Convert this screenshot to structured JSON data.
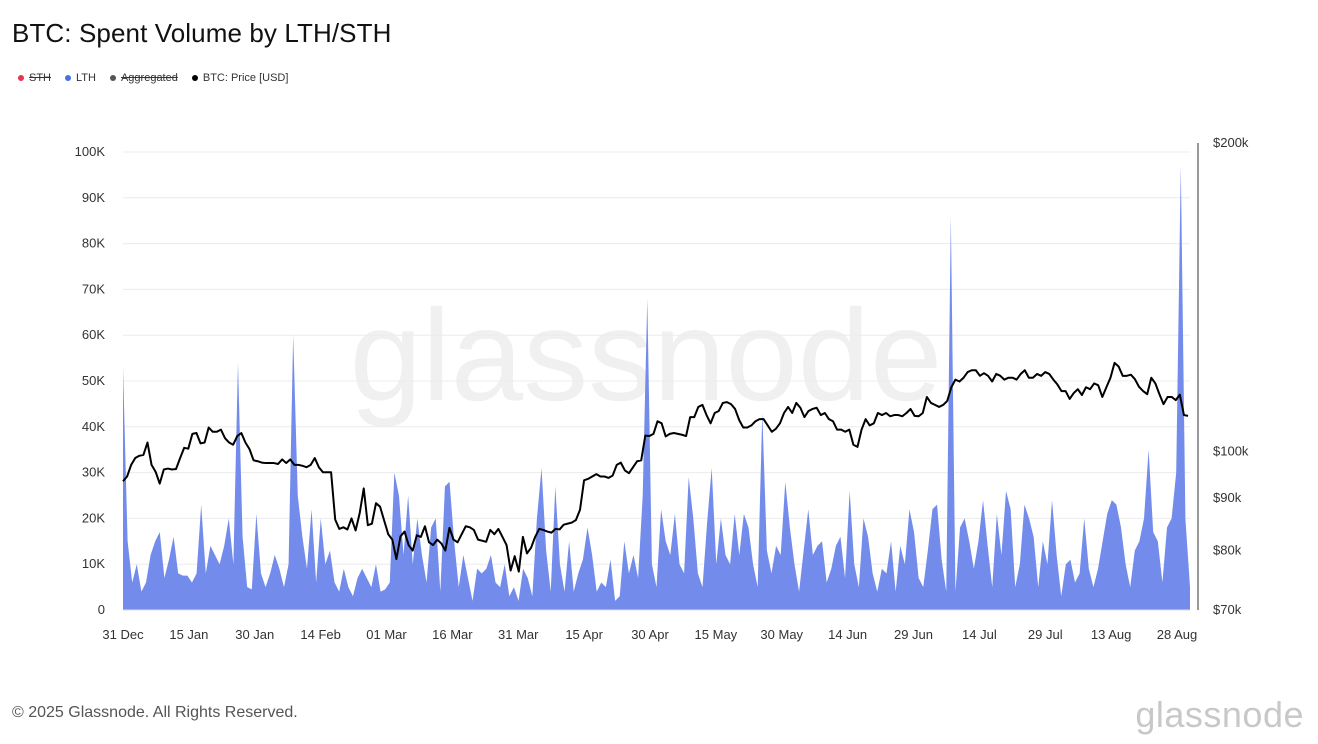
{
  "header": {
    "title": "BTC: Spent Volume by LTH/STH"
  },
  "legend": [
    {
      "label": "STH",
      "color": "#e8344e",
      "enabled": false
    },
    {
      "label": "LTH",
      "color": "#4a6fe3",
      "enabled": true
    },
    {
      "label": "Aggregated",
      "color": "#555555",
      "enabled": false
    },
    {
      "label": "BTC: Price [USD]",
      "color": "#000000",
      "enabled": true
    }
  ],
  "footer": {
    "copyright": "© 2025 Glassnode. All Rights Reserved.",
    "brand": "glassnode"
  },
  "watermark": "glassnode",
  "chart_data": {
    "type": "area",
    "title": "BTC: Spent Volume by LTH/STH",
    "x_tick_labels": [
      "31 Dec",
      "15 Jan",
      "30 Jan",
      "14 Feb",
      "01 Mar",
      "16 Mar",
      "31 Mar",
      "15 Apr",
      "30 Apr",
      "15 May",
      "30 May",
      "14 Jun",
      "29 Jun",
      "14 Jul",
      "29 Jul",
      "13 Aug",
      "28 Aug"
    ],
    "y_left": {
      "ticks": [
        "0",
        "10K",
        "20K",
        "30K",
        "40K",
        "50K",
        "60K",
        "70K",
        "80K",
        "90K",
        "100K"
      ],
      "min": 0,
      "max": 100000
    },
    "y_right": {
      "ticks": [
        "$70k",
        "$80k",
        "$90k",
        "$100k",
        "$200k"
      ],
      "values": [
        70000,
        80000,
        90000,
        100000,
        200000
      ],
      "scale": "log"
    },
    "grid": true,
    "legend_position": "top-left",
    "series": [
      {
        "name": "LTH",
        "axis": "left",
        "color": "#6b86ea",
        "values": [
          53000,
          15000,
          6000,
          10000,
          4000,
          6000,
          12000,
          15000,
          17000,
          7000,
          11000,
          16000,
          8000,
          7500,
          7500,
          6000,
          8000,
          23000,
          8000,
          14000,
          12000,
          10000,
          14000,
          20000,
          10000,
          54000,
          16000,
          5000,
          4500,
          21000,
          8000,
          5000,
          8000,
          12000,
          9000,
          5000,
          10000,
          60000,
          25000,
          16000,
          9000,
          22000,
          6000,
          20000,
          10000,
          13000,
          6000,
          4000,
          9000,
          5000,
          3000,
          7000,
          9000,
          7000,
          5000,
          10000,
          4000,
          4500,
          6000,
          30000,
          25000,
          12000,
          25000,
          10000,
          20000,
          12000,
          6000,
          18000,
          20000,
          4000,
          27000,
          28000,
          15000,
          5000,
          12000,
          7000,
          2000,
          9000,
          8000,
          9000,
          12000,
          6000,
          5000,
          10000,
          3000,
          5000,
          2000,
          9000,
          7000,
          3000,
          20000,
          31000,
          13000,
          4000,
          27000,
          10000,
          4000,
          15000,
          4000,
          8000,
          11000,
          18000,
          12000,
          4000,
          6000,
          5000,
          11000,
          2000,
          3000,
          15000,
          8000,
          12000,
          7000,
          25000,
          68000,
          10000,
          5000,
          22000,
          15000,
          12000,
          21000,
          10000,
          8000,
          29000,
          20000,
          8000,
          5000,
          19000,
          31000,
          10000,
          20000,
          12000,
          10000,
          21000,
          12000,
          21000,
          18000,
          10000,
          5000,
          43000,
          13000,
          8000,
          14000,
          12000,
          28000,
          18000,
          10000,
          4000,
          13000,
          22000,
          12000,
          14000,
          15000,
          6000,
          9000,
          14000,
          16000,
          7000,
          26000,
          10000,
          5000,
          20000,
          16000,
          8000,
          4000,
          9000,
          8000,
          15000,
          4000,
          14000,
          10000,
          22000,
          17000,
          7000,
          5000,
          13000,
          22000,
          23000,
          11000,
          4000,
          86000,
          4000,
          18000,
          20000,
          15000,
          9000,
          15000,
          24000,
          14000,
          5000,
          21000,
          12000,
          26000,
          22000,
          5000,
          10000,
          23000,
          20000,
          16000,
          5000,
          15000,
          10000,
          24000,
          12000,
          3000,
          10000,
          11000,
          6000,
          8000,
          20000,
          9000,
          5000,
          9000,
          15000,
          21000,
          24000,
          23000,
          18000,
          10000,
          5000,
          13000,
          15000,
          20000,
          35000,
          17000,
          15000,
          6000,
          18000,
          20000,
          30000,
          97000,
          20000,
          5000
        ]
      },
      {
        "name": "BTC: Price [USD]",
        "axis": "right",
        "color": "#000000",
        "values": [
          93500,
          94500,
          97000,
          98500,
          99000,
          99200,
          102000,
          97000,
          95500,
          93000,
          96000,
          96200,
          96000,
          96100,
          98500,
          100800,
          100600,
          104000,
          104200,
          101800,
          102000,
          105500,
          104500,
          104500,
          105000,
          103000,
          102000,
          101500,
          103500,
          104200,
          102000,
          100500,
          98000,
          97800,
          97500,
          97400,
          97400,
          97400,
          97200,
          98200,
          97400,
          98200,
          97000,
          97000,
          96800,
          96500,
          97000,
          98500,
          96500,
          95400,
          95400,
          95400,
          85800,
          84000,
          84300,
          83900,
          86000,
          83700,
          87000,
          92000,
          84700,
          85000,
          89000,
          88300,
          85600,
          83000,
          82000,
          78500,
          82600,
          83500,
          81000,
          80000,
          82800,
          82500,
          84500,
          81500,
          81000,
          82000,
          81300,
          80000,
          84200,
          82000,
          81500,
          83000,
          84500,
          84300,
          83800,
          82000,
          81800,
          81600,
          83800,
          83000,
          84000,
          82500,
          81000,
          76500,
          79000,
          76300,
          82500,
          79500,
          80500,
          82500,
          84000,
          83800,
          83500,
          83300,
          84000,
          83900,
          84800,
          85000,
          85200,
          85700,
          87700,
          93700,
          94000,
          94500,
          95000,
          94500,
          94500,
          94200,
          94700,
          97000,
          97500,
          95800,
          95200,
          96500,
          97800,
          98000,
          103600,
          103500,
          104000,
          107000,
          106500,
          103400,
          104000,
          104200,
          104000,
          103800,
          103500,
          108000,
          108000,
          110500,
          111000,
          108500,
          106500,
          109000,
          109500,
          111500,
          111700,
          111200,
          110000,
          107300,
          105500,
          105500,
          106000,
          107000,
          107500,
          107500,
          106000,
          104500,
          105200,
          106500,
          109000,
          110500,
          109000,
          111500,
          110300,
          108000,
          109500,
          110000,
          110300,
          108500,
          109000,
          107500,
          107000,
          105000,
          105000,
          104500,
          105000,
          101500,
          101000,
          105000,
          107500,
          106000,
          106500,
          109000,
          108500,
          109000,
          108200,
          108500,
          108500,
          108200,
          109000,
          110000,
          108300,
          108200,
          109000,
          113000,
          111500,
          111000,
          110500,
          111000,
          112000,
          115500,
          117500,
          117000,
          118000,
          119500,
          120000,
          120000,
          118500,
          119200,
          118500,
          117000,
          119000,
          118500,
          117500,
          118000,
          118000,
          117500,
          119000,
          120000,
          118000,
          118000,
          119000,
          118500,
          119500,
          119000,
          117500,
          116200,
          114500,
          114500,
          112500,
          114000,
          115000,
          113500,
          115500,
          115000,
          116500,
          116000,
          113000,
          115500,
          118000,
          122000,
          121000,
          118500,
          118500,
          118800,
          117600,
          115600,
          114500,
          113700,
          118000,
          116500,
          113700,
          111200,
          113000,
          113000,
          112200,
          113600,
          108500,
          108300
        ]
      }
    ]
  }
}
